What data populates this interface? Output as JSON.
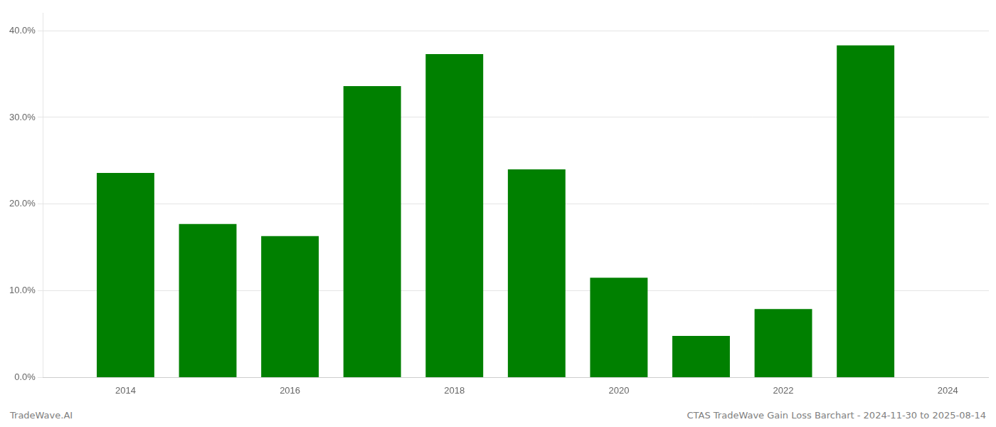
{
  "chart_data": {
    "type": "bar",
    "x": [
      2014,
      2015,
      2016,
      2017,
      2018,
      2019,
      2020,
      2021,
      2022,
      2023
    ],
    "values": [
      0.236,
      0.177,
      0.163,
      0.336,
      0.373,
      0.24,
      0.115,
      0.048,
      0.079,
      0.383
    ],
    "color": "#008000",
    "xlim": [
      2013.0,
      2024.5
    ],
    "xticks": [
      2014,
      2016,
      2018,
      2020,
      2022,
      2024
    ],
    "ylim": [
      0,
      0.42
    ],
    "yticks": [
      {
        "value": 0.0,
        "label": "0.0%"
      },
      {
        "value": 0.1,
        "label": "10.0%"
      },
      {
        "value": 0.2,
        "label": "20.0%"
      },
      {
        "value": 0.3,
        "label": "30.0%"
      },
      {
        "value": 0.4,
        "label": "40.0%"
      }
    ],
    "grid": "y",
    "annotations": [
      "TradeWave.AI",
      "CTAS TradeWave Gain Loss Barchart - 2024-11-30 to 2025-08-14"
    ]
  }
}
